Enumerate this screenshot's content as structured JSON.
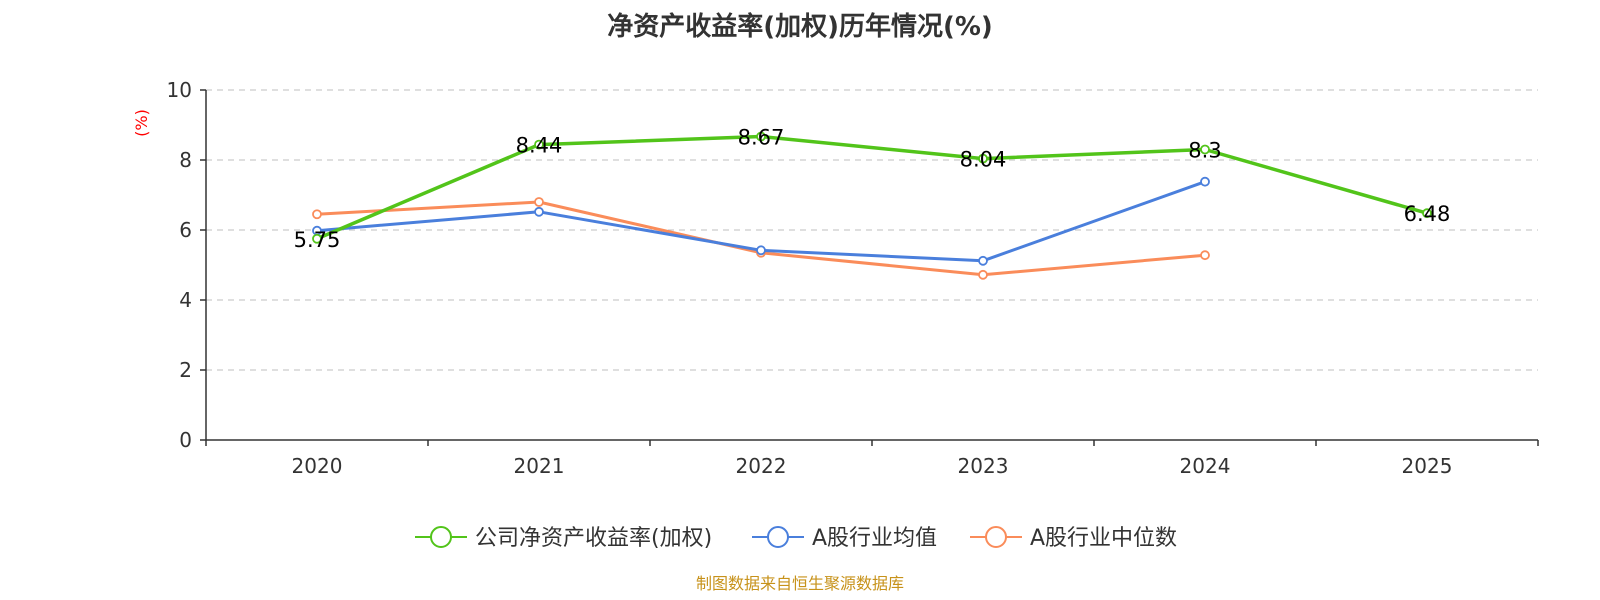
{
  "chart_data": {
    "type": "line",
    "title": "净资产收益率(加权)历年情况(%)",
    "ylabel": "(%)",
    "xlabel": "",
    "ylim": [
      0,
      10
    ],
    "yticks": [
      "0",
      "2",
      "4",
      "6",
      "8",
      "10"
    ],
    "categories": [
      "2020",
      "2021",
      "2022",
      "2023",
      "2024",
      "2025"
    ],
    "series": [
      {
        "name": "公司净资产收益率(加权)",
        "color": "#52c41a",
        "values": [
          5.75,
          8.44,
          8.67,
          8.04,
          8.3,
          6.48
        ],
        "labels": [
          "5.75",
          "8.44",
          "8.67",
          "8.04",
          "8.3",
          "6.48"
        ]
      },
      {
        "name": "A股行业均值",
        "color": "#4a7fdc",
        "values": [
          5.98,
          6.52,
          5.42,
          5.12,
          7.38,
          null
        ]
      },
      {
        "name": "A股行业中位数",
        "color": "#fa8c5a",
        "values": [
          6.45,
          6.8,
          5.35,
          4.72,
          5.28,
          null
        ]
      }
    ],
    "grid": true,
    "legend_position": "bottom-center"
  },
  "source_note": "制图数据来自恒生聚源数据库",
  "colors": {
    "axis": "#333333",
    "grid": "#cccccc",
    "ylabel": "#ff0000",
    "source": "#c7921a"
  }
}
